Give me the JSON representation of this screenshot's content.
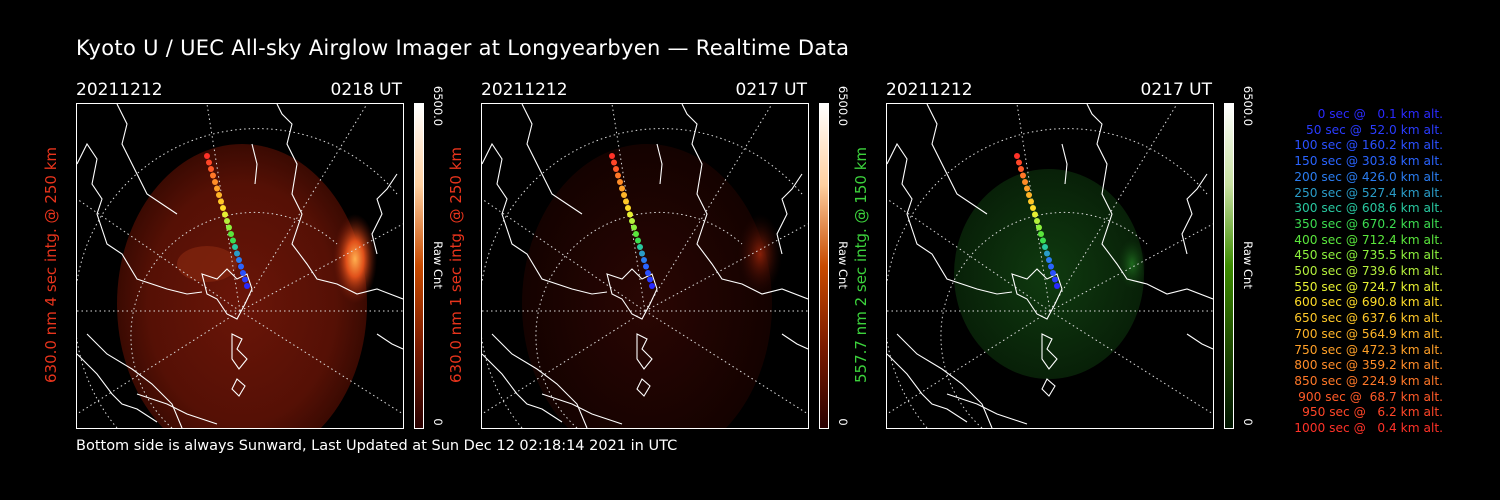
{
  "title": "Kyoto U / UEC All-sky Airglow Imager at Longyearbyen — Realtime Data",
  "footer": "Bottom side is always Sunward, Last Updated at Sun Dec 12 02:18:14 2021 in UTC",
  "panels": [
    {
      "date": "20211212",
      "time": "0218 UT",
      "label": "630.0 nm 4 sec intg. @ 250 km",
      "label_color": "#e8341c",
      "colorbar": {
        "max": "6500.0",
        "min": "0",
        "unit": "Raw Cnt",
        "colors": [
          "#3a0000",
          "#c83a00",
          "#ffffff"
        ]
      }
    },
    {
      "date": "20211212",
      "time": "0217 UT",
      "label": "630.0 nm 1 sec intg. @ 250 km",
      "label_color": "#e8341c",
      "colorbar": {
        "max": "6500.0",
        "min": "0",
        "unit": "Raw Cnt",
        "colors": [
          "#3a0000",
          "#c83a00",
          "#ffffff"
        ]
      }
    },
    {
      "date": "20211212",
      "time": "0217 UT",
      "label": "557.7 nm 2 sec intg. @ 150 km",
      "label_color": "#3cd23c",
      "colorbar": {
        "max": "6500.0",
        "min": "0",
        "unit": "Raw Cnt",
        "colors": [
          "#002000",
          "#3c8c00",
          "#ffffff"
        ]
      }
    }
  ],
  "legend": [
    {
      "text": "0 sec @   0.1 km alt.",
      "color": "#2a2aff"
    },
    {
      "text": "50 sec @  52.0 km alt.",
      "color": "#2a3cff"
    },
    {
      "text": "100 sec @ 160.2 km alt.",
      "color": "#2a50ff"
    },
    {
      "text": "150 sec @ 303.8 km alt.",
      "color": "#2a64ff"
    },
    {
      "text": "200 sec @ 426.0 km alt.",
      "color": "#2a7cf0"
    },
    {
      "text": "250 sec @ 527.4 km alt.",
      "color": "#2a9cc8"
    },
    {
      "text": "300 sec @ 608.6 km alt.",
      "color": "#28c8a0"
    },
    {
      "text": "350 sec @ 670.2 km alt.",
      "color": "#3cdc50"
    },
    {
      "text": "400 sec @ 712.4 km alt.",
      "color": "#5ae63c"
    },
    {
      "text": "450 sec @ 735.5 km alt.",
      "color": "#8cf03c"
    },
    {
      "text": "500 sec @ 739.6 km alt.",
      "color": "#b4f03c"
    },
    {
      "text": "550 sec @ 724.7 km alt.",
      "color": "#e6f032"
    },
    {
      "text": "600 sec @ 690.8 km alt.",
      "color": "#ffdc28"
    },
    {
      "text": "650 sec @ 637.6 km alt.",
      "color": "#ffc828"
    },
    {
      "text": "700 sec @ 564.9 km alt.",
      "color": "#ffb428"
    },
    {
      "text": "750 sec @ 472.3 km alt.",
      "color": "#ffa028"
    },
    {
      "text": "800 sec @ 359.2 km alt.",
      "color": "#ff8c28"
    },
    {
      "text": "850 sec @ 224.9 km alt.",
      "color": "#ff7828"
    },
    {
      "text": "900 sec @  68.7 km alt.",
      "color": "#ff5a28"
    },
    {
      "text": "950 sec @   6.2 km alt.",
      "color": "#ff4628"
    },
    {
      "text": "1000 sec @   0.4 km alt.",
      "color": "#ff3228"
    }
  ]
}
